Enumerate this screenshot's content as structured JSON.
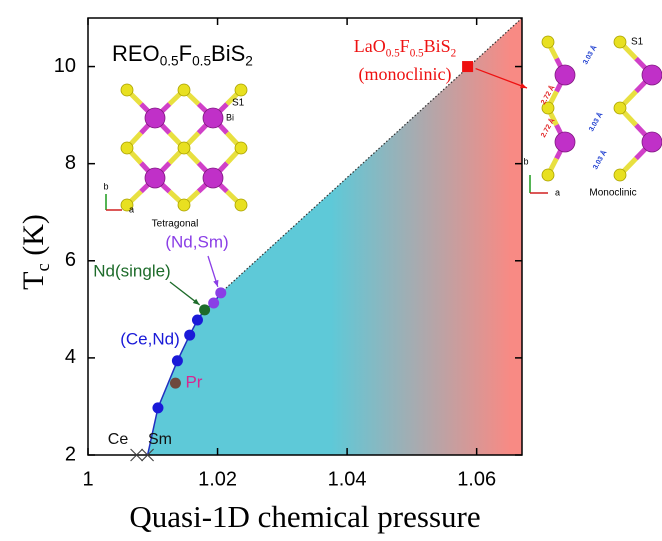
{
  "chart_data": {
    "type": "scatter",
    "inset_title": [
      "REO",
      "0.5",
      "F",
      "0.5",
      "BiS",
      "2"
    ],
    "x_label": "Quasi-1D chemical pressure",
    "y_label": [
      "T",
      "c",
      " (K)"
    ],
    "xlim": [
      1,
      1.067
    ],
    "ylim": [
      2,
      11
    ],
    "xticks": [
      1,
      1.02,
      1.04,
      1.06
    ],
    "yticks": [
      2,
      4,
      6,
      8,
      10
    ],
    "series": [
      {
        "name": "(Ce,Nd)",
        "color": "#1a1ad8",
        "marker": "circle",
        "x": [
          1.0108,
          1.0138,
          1.0157,
          1.0169
        ],
        "values": [
          2.97,
          3.94,
          4.47,
          4.78
        ]
      },
      {
        "name": "Nd(single)",
        "color": "#1d6b2a",
        "marker": "circle",
        "x": [
          1.018
        ],
        "values": [
          4.99
        ]
      },
      {
        "name": "(Nd,Sm)",
        "color": "#8a3ee6",
        "marker": "circle",
        "x": [
          1.0194,
          1.0205
        ],
        "values": [
          5.13,
          5.34
        ]
      },
      {
        "name": "Pr",
        "color": "#6e4a3e",
        "label_color": "#d62891",
        "marker": "circle",
        "x": [
          1.0135
        ],
        "values": [
          3.48
        ]
      },
      {
        "name": [
          "LaO",
          "0.5",
          "F",
          "0.5",
          "BiS",
          "2"
        ],
        "annotation": "(monoclinic)",
        "color": "#ee1111",
        "marker": "square",
        "x": [
          1.0586
        ],
        "values": [
          10.0
        ]
      },
      {
        "name": "Ce",
        "color": "#444444",
        "marker": "x",
        "x": [
          1.0075
        ],
        "values": [
          2
        ]
      },
      {
        "name": "Sm",
        "color": "#444444",
        "marker": "x",
        "x": [
          1.0092
        ],
        "values": [
          2
        ]
      }
    ],
    "region_colors": [
      "#5ec9d8",
      "#f88a84"
    ],
    "insets": {
      "tetragonal": {
        "label": "Tetragonal",
        "site_s": "S1",
        "site_bi": "Bi",
        "axis_a": "a",
        "axis_b": "b"
      },
      "monoclinic": {
        "label": "Monoclinic",
        "site_s": "S1",
        "axis_a": "a",
        "axis_b": "b",
        "bond_short": "2.72 Å",
        "bond_long": "3.03 Å"
      }
    }
  }
}
